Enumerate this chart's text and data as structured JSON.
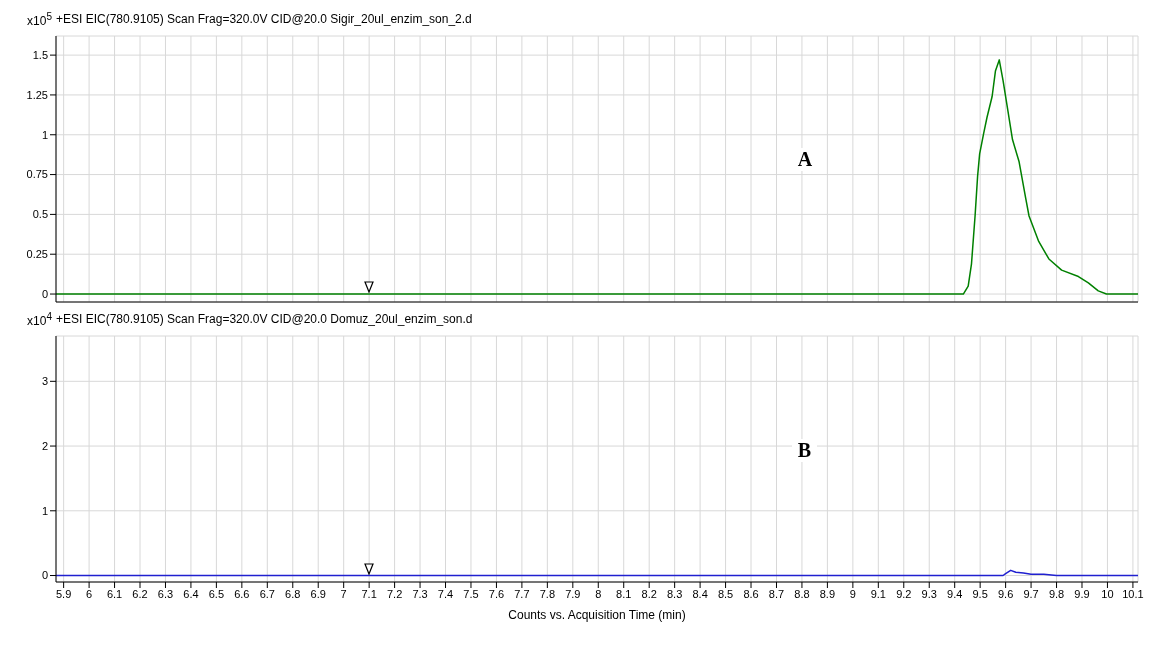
{
  "chart_data": [
    {
      "type": "line",
      "title": "+ESI EIC(780.9105) Scan  Frag=320.0V CID@20.0 Sigir_20ul_enzim_son_2.d",
      "ylabel": "x10$^{5}$",
      "annotations": [
        "A"
      ],
      "xlim": [
        5.87,
        10.12
      ],
      "xticks": [
        5.9,
        6,
        6.1,
        6.2,
        6.3,
        6.4,
        6.5,
        6.6,
        6.7,
        6.8,
        6.9,
        7,
        7.1,
        7.2,
        7.3,
        7.4,
        7.5,
        7.6,
        7.7,
        7.8,
        7.9,
        8,
        8.1,
        8.2,
        8.3,
        8.4,
        8.5,
        8.6,
        8.7,
        8.8,
        8.9,
        9,
        9.1,
        9.2,
        9.3,
        9.4,
        9.5,
        9.6,
        9.7,
        9.8,
        9.9,
        10,
        10.1
      ],
      "ylim": [
        -0.05,
        1.62
      ],
      "yticks": [
        0,
        0.25,
        0.5,
        0.75,
        1,
        1.25,
        1.5
      ],
      "grid": true,
      "tick_labels": "y",
      "marker": "none",
      "series": [
        {
          "color": "#008000",
          "x": [
            5.87,
            9.434,
            9.453,
            9.466,
            9.48,
            9.49,
            9.498,
            9.514,
            9.527,
            9.547,
            9.56,
            9.575,
            9.59,
            9.607,
            9.627,
            9.653,
            9.679,
            9.692,
            9.73,
            9.77,
            9.82,
            9.886,
            9.925,
            9.964,
            9.996,
            10.12
          ],
          "values": [
            0,
            0,
            0.05,
            0.19,
            0.49,
            0.74,
            0.88,
            1.01,
            1.11,
            1.24,
            1.4,
            1.47,
            1.34,
            1.17,
            0.97,
            0.83,
            0.6,
            0.49,
            0.33,
            0.22,
            0.15,
            0.11,
            0.07,
            0.02,
            0,
            0
          ]
        }
      ]
    },
    {
      "type": "line",
      "title": "+ESI EIC(780.9105) Scan Frag=320.0V CID@20.0 Domuz_20ul_enzim_son.d",
      "ylabel": "x10$^{4}$",
      "xlabel": "Counts vs. Acquisition Time (min)",
      "annotations": [
        "B"
      ],
      "xlim": [
        5.87,
        10.12
      ],
      "xticks": [
        5.9,
        6,
        6.1,
        6.2,
        6.3,
        6.4,
        6.5,
        6.6,
        6.7,
        6.8,
        6.9,
        7,
        7.1,
        7.2,
        7.3,
        7.4,
        7.5,
        7.6,
        7.7,
        7.8,
        7.9,
        8,
        8.1,
        8.2,
        8.3,
        8.4,
        8.5,
        8.6,
        8.7,
        8.8,
        8.9,
        9,
        9.1,
        9.2,
        9.3,
        9.4,
        9.5,
        9.6,
        9.7,
        9.8,
        9.9,
        10,
        10.1
      ],
      "ylim": [
        -0.1,
        3.7
      ],
      "yticks": [
        0,
        1,
        2,
        3
      ],
      "grid": true,
      "marker": "none",
      "series": [
        {
          "color": "#2020d0",
          "x": [
            5.87,
            9.59,
            9.6,
            9.62,
            9.64,
            9.67,
            9.7,
            9.75,
            9.8,
            10.12
          ],
          "values": [
            0,
            0,
            0.03,
            0.08,
            0.05,
            0.04,
            0.02,
            0.02,
            0,
            0
          ]
        }
      ]
    }
  ]
}
